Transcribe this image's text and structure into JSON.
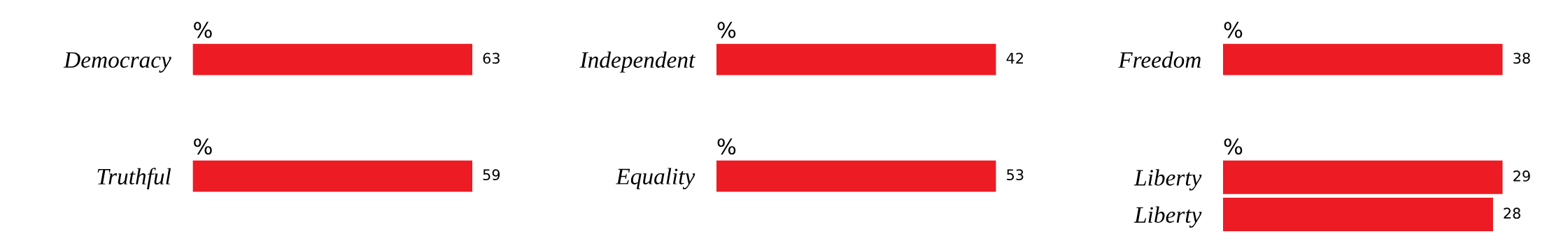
{
  "chart_data": [
    {
      "type": "bar",
      "orientation": "horizontal",
      "title": "%",
      "categories": [
        "Democracy"
      ],
      "values": [
        63
      ],
      "color": "#ed1c24",
      "data_labels": true,
      "tick_labels": "y",
      "grid": false,
      "legend": false
    },
    {
      "type": "bar",
      "orientation": "horizontal",
      "title": "%",
      "categories": [
        "Independent"
      ],
      "values": [
        42
      ],
      "color": "#ed1c24",
      "data_labels": true,
      "tick_labels": "y",
      "grid": false,
      "legend": false
    },
    {
      "type": "bar",
      "orientation": "horizontal",
      "title": "%",
      "categories": [
        "Freedom"
      ],
      "values": [
        38
      ],
      "color": "#ed1c24",
      "data_labels": true,
      "tick_labels": "y",
      "grid": false,
      "legend": false
    },
    {
      "type": "bar",
      "orientation": "horizontal",
      "title": "%",
      "categories": [
        "Truthful"
      ],
      "values": [
        59
      ],
      "color": "#ed1c24",
      "data_labels": true,
      "tick_labels": "y",
      "grid": false,
      "legend": false
    },
    {
      "type": "bar",
      "orientation": "horizontal",
      "title": "%",
      "categories": [
        "Equality"
      ],
      "values": [
        53
      ],
      "color": "#ed1c24",
      "data_labels": true,
      "tick_labels": "y",
      "grid": false,
      "legend": false
    },
    {
      "type": "bar",
      "orientation": "horizontal",
      "title": "%",
      "categories": [
        "Liberty",
        "Liberty"
      ],
      "values": [
        29,
        28
      ],
      "color": "#ed1c24",
      "data_labels": true,
      "tick_labels": "y",
      "grid": false,
      "legend": false
    }
  ]
}
